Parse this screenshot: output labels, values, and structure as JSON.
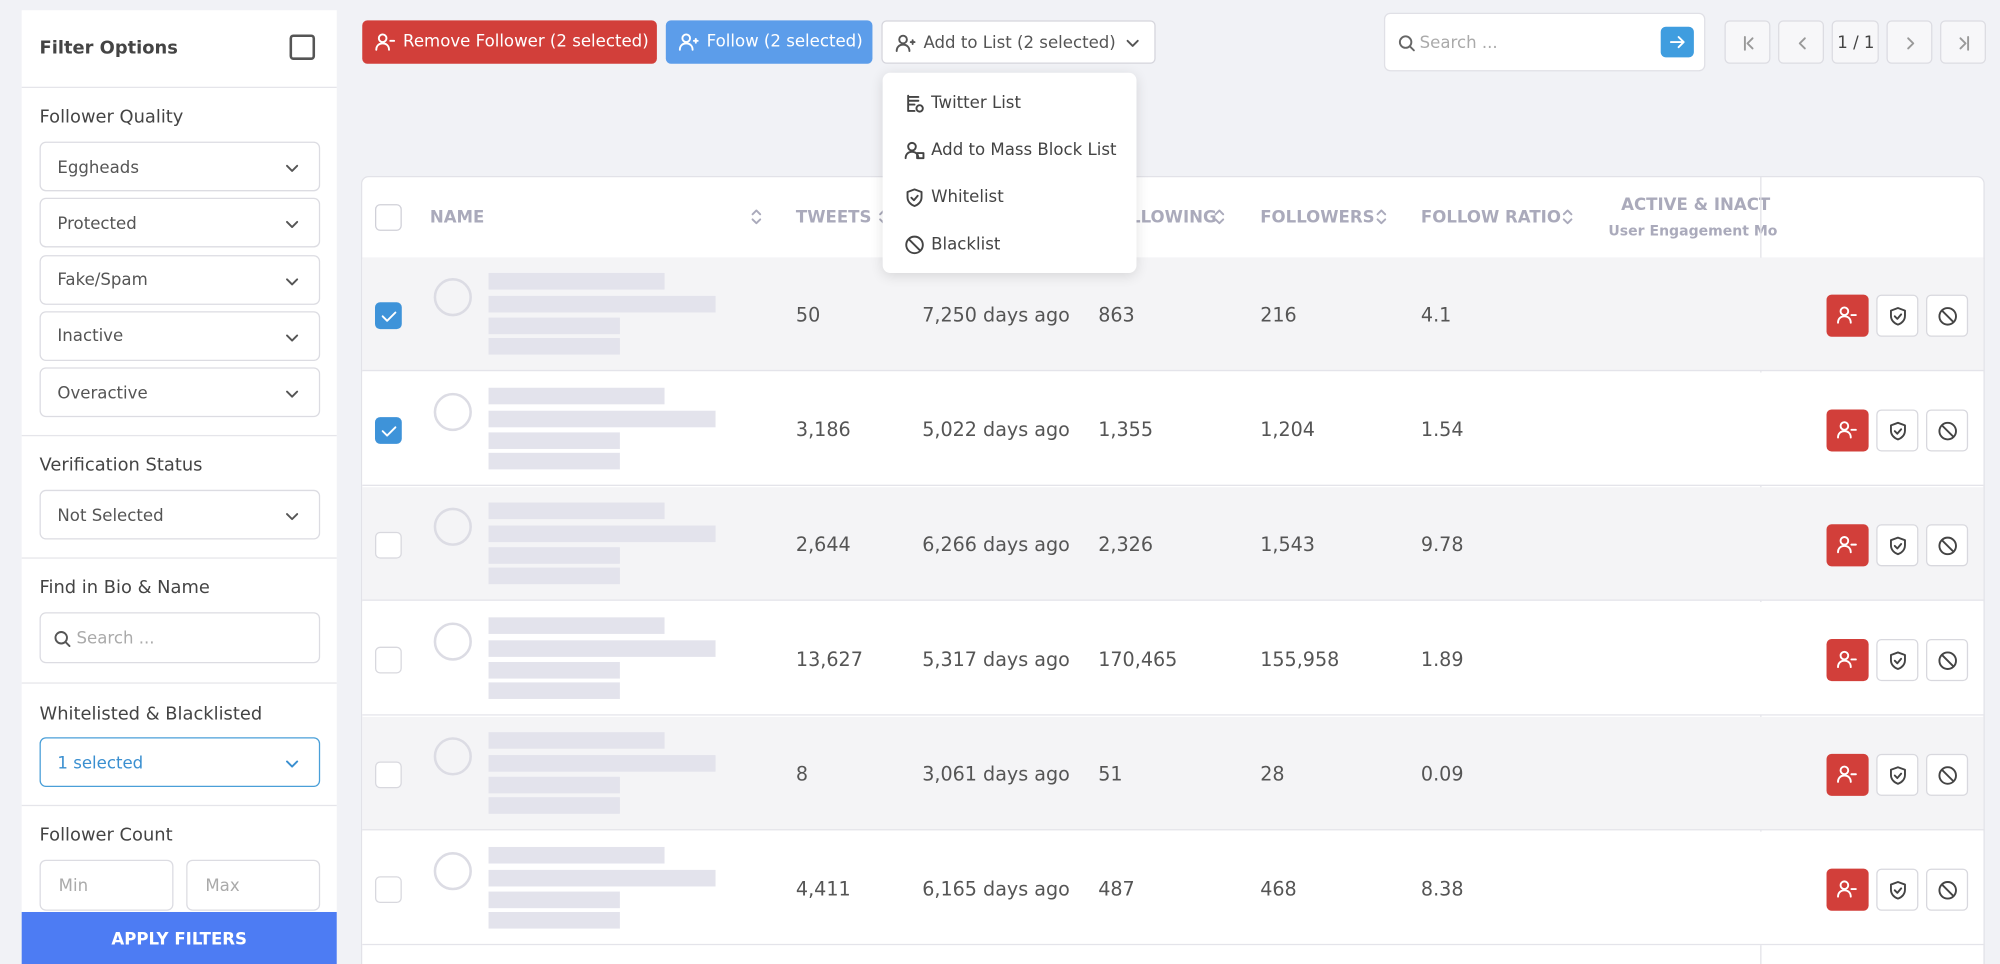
{
  "sidebar": {
    "title": "Filter Options",
    "follower_quality": {
      "title": "Follower Quality",
      "selects": [
        "Eggheads",
        "Protected",
        "Fake/Spam",
        "Inactive",
        "Overactive"
      ]
    },
    "verification": {
      "title": "Verification Status",
      "select": "Not Selected"
    },
    "find": {
      "title": "Find in Bio & Name",
      "placeholder": "Search ..."
    },
    "lists": {
      "title": "Whitelisted & Blacklisted",
      "select": "1 selected"
    },
    "count": {
      "title": "Follower Count",
      "min": "Min",
      "max": "Max"
    },
    "apply": "APPLY FILTERS"
  },
  "toolbar": {
    "remove": "Remove Follower (2 selected)",
    "follow": "Follow (2 selected)",
    "add_to_list": "Add to List (2 selected)",
    "search_placeholder": "Search ...",
    "page": "1 / 1"
  },
  "dropdown": [
    "Twitter List",
    "Add to Mass Block List",
    "Whitelist",
    "Blacklist"
  ],
  "table": {
    "headers": [
      "NAME",
      "TWEETS",
      "FOLLOWING",
      "FOLLOWERS",
      "FOLLOW RATIO",
      "ACTIVE & INACT"
    ],
    "subheader": "User Engagement Mo",
    "rows": [
      {
        "checked": true,
        "cells": [
          "50",
          "7,250 days ago",
          "863",
          "216",
          "4.1"
        ]
      },
      {
        "checked": true,
        "cells": [
          "3,186",
          "5,022 days ago",
          "1,355",
          "1,204",
          "1.54"
        ]
      },
      {
        "checked": false,
        "cells": [
          "2,644",
          "6,266 days ago",
          "2,326",
          "1,543",
          "9.78"
        ]
      },
      {
        "checked": false,
        "cells": [
          "13,627",
          "5,317 days ago",
          "170,465",
          "155,958",
          "1.89"
        ]
      },
      {
        "checked": false,
        "cells": [
          "8",
          "3,061 days ago",
          "51",
          "28",
          "0.09"
        ]
      },
      {
        "checked": false,
        "cells": [
          "4,411",
          "6,165 days ago",
          "487",
          "468",
          "8.38"
        ]
      }
    ]
  }
}
